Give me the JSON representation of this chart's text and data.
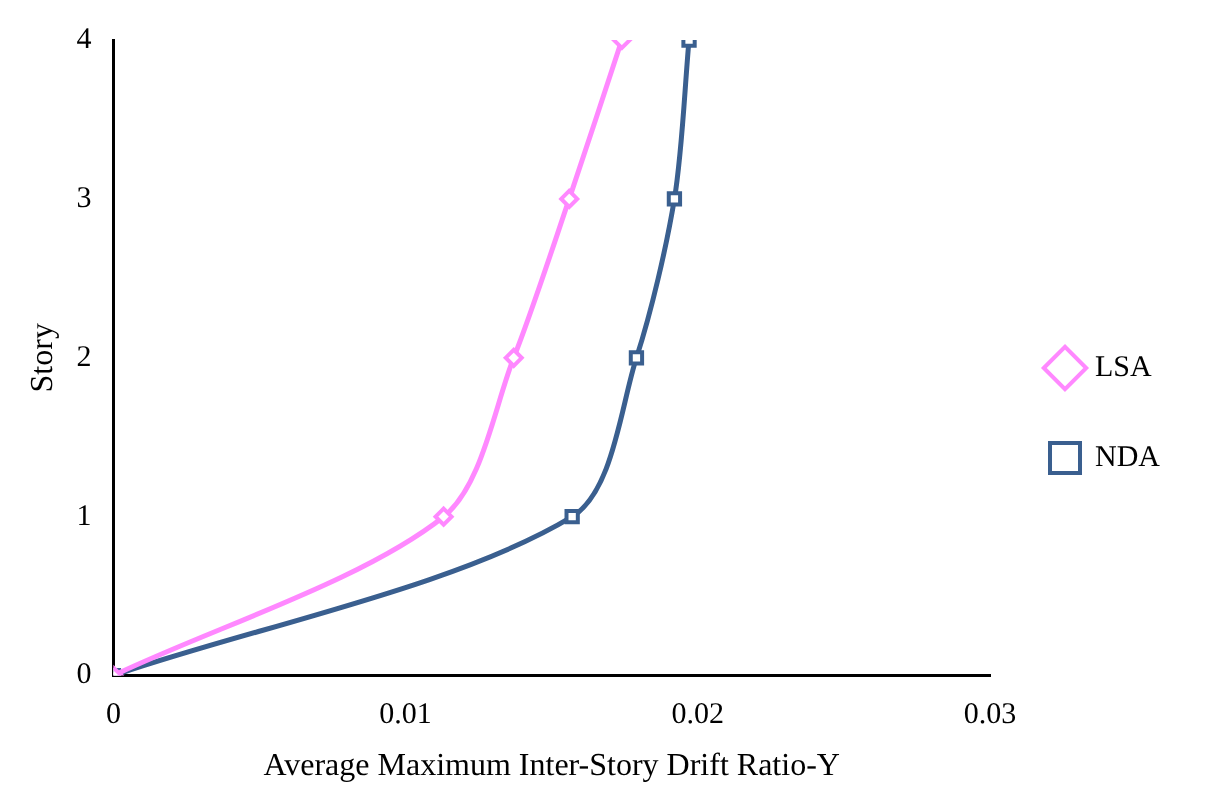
{
  "chart_data": {
    "type": "line",
    "xlabel": "Average Maximum Inter-Story Drift Ratio-Y",
    "ylabel": "Story",
    "xlim": [
      0,
      0.03
    ],
    "xticks": [
      0,
      0.01,
      0.02,
      0.03
    ],
    "ylim": [
      0,
      4
    ],
    "yticks": [
      0,
      1,
      2,
      3,
      4
    ],
    "grid": false,
    "legend": "right",
    "series": [
      {
        "name": "LSA",
        "color": "#ff88ff",
        "marker": "diamond",
        "x": [
          0,
          0.0113,
          0.0137,
          0.0156,
          0.0174
        ],
        "values": [
          0,
          1,
          2,
          3,
          4
        ]
      },
      {
        "name": "NDA",
        "color": "#3a5f8f",
        "marker": "square",
        "x": [
          0,
          0.0157,
          0.0179,
          0.0192,
          0.0197
        ],
        "values": [
          0,
          1,
          2,
          3,
          4
        ]
      }
    ]
  }
}
